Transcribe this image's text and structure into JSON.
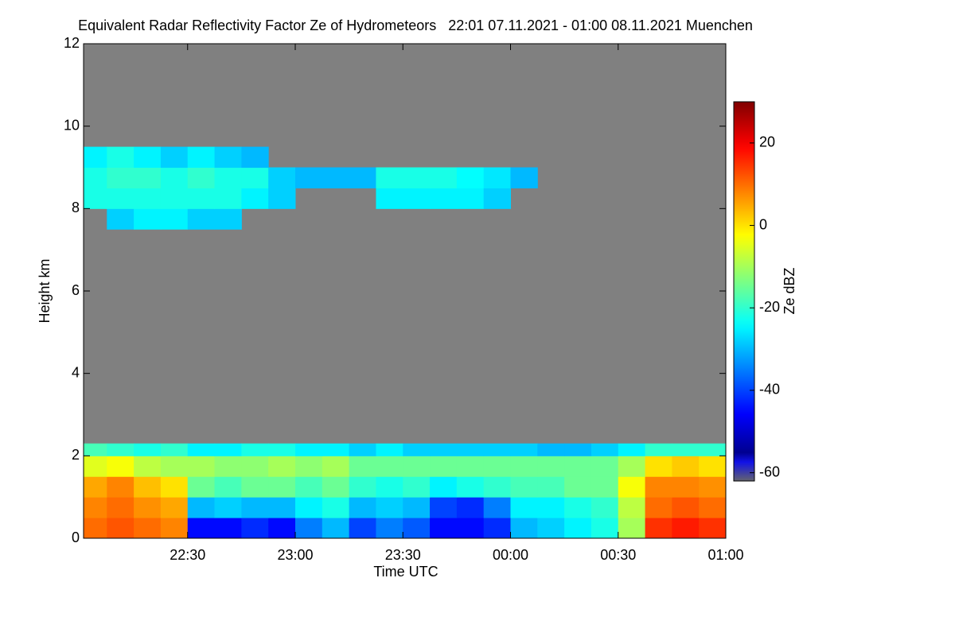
{
  "chart_data": {
    "type": "heatmap",
    "title": "Equivalent Radar Reflectivity Factor Ze of Hydrometeors   22:01 07.11.2021 - 01:00 08.11.2021 Muenchen",
    "x_label": "Time UTC",
    "y_label": "Height km",
    "colorbar_label": "Ze dBZ",
    "colormap": "jet",
    "no_data_color": "#808080",
    "xlim": [
      22.0167,
      25
    ],
    "xticks": [
      {
        "value": 22.5,
        "label": "22:30"
      },
      {
        "value": 23,
        "label": "23:00"
      },
      {
        "value": 23.5,
        "label": "23:30"
      },
      {
        "value": 24,
        "label": "00:00"
      },
      {
        "value": 24.5,
        "label": "00:30"
      },
      {
        "value": 25,
        "label": "01:00"
      }
    ],
    "ylim": [
      0,
      12
    ],
    "yticks": [
      0,
      2,
      4,
      6,
      8,
      10,
      12
    ],
    "zlim": [
      -62,
      30
    ],
    "zticks": [
      -60,
      -40,
      -20,
      0,
      20
    ],
    "x_bins": [
      22.0167,
      22.125,
      22.25,
      22.375,
      22.5,
      22.625,
      22.75,
      22.875,
      23,
      23.125,
      23.25,
      23.375,
      23.5,
      23.625,
      23.75,
      23.875,
      24,
      24.125,
      24.25,
      24.375,
      24.5,
      24.625,
      24.75,
      24.875,
      25
    ],
    "y_bins": [
      [
        0,
        0.5
      ],
      [
        0.5,
        1
      ],
      [
        1,
        1.5
      ],
      [
        1.5,
        2
      ],
      [
        2,
        2.3
      ],
      [
        7.5,
        8
      ],
      [
        8,
        8.5
      ],
      [
        8.5,
        9
      ],
      [
        9,
        9.5
      ]
    ],
    "z": [
      [
        10,
        12,
        10,
        8,
        -45,
        -45,
        -42,
        -45,
        -35,
        -30,
        -40,
        -35,
        -38,
        -45,
        -45,
        -42,
        -30,
        -28,
        -25,
        -22,
        -10,
        15,
        17,
        15
      ],
      [
        8,
        10,
        7,
        5,
        -30,
        -28,
        -30,
        -30,
        -25,
        -22,
        -30,
        -28,
        -30,
        -40,
        -42,
        -35,
        -25,
        -25,
        -22,
        -20,
        -8,
        10,
        12,
        10
      ],
      [
        5,
        8,
        3,
        0,
        -15,
        -18,
        -15,
        -15,
        -18,
        -15,
        -20,
        -22,
        -20,
        -25,
        -22,
        -20,
        -18,
        -18,
        -15,
        -15,
        -3,
        8,
        8,
        7
      ],
      [
        -5,
        -3,
        -8,
        -10,
        -10,
        -12,
        -12,
        -10,
        -12,
        -10,
        -15,
        -15,
        -15,
        -15,
        -15,
        -15,
        -15,
        -15,
        -15,
        -15,
        -10,
        0,
        2,
        0
      ],
      [
        -18,
        -20,
        -22,
        -20,
        -25,
        -25,
        -22,
        -22,
        -25,
        -25,
        -28,
        -25,
        -28,
        -28,
        -28,
        -28,
        -28,
        -30,
        -30,
        -28,
        -25,
        -20,
        -20,
        -20
      ],
      [
        null,
        -28,
        -25,
        -25,
        -28,
        -28,
        null,
        null,
        null,
        null,
        null,
        null,
        null,
        null,
        null,
        null,
        null,
        null,
        null,
        null,
        null,
        null,
        null,
        null
      ],
      [
        -22,
        -22,
        -22,
        -22,
        -22,
        -22,
        -25,
        -28,
        null,
        null,
        null,
        -25,
        -25,
        -25,
        -25,
        -28,
        null,
        null,
        null,
        null,
        null,
        null,
        null,
        null
      ],
      [
        -22,
        -20,
        -20,
        -22,
        -20,
        -22,
        -22,
        -28,
        -30,
        -30,
        -30,
        -22,
        -22,
        -22,
        -24,
        -26,
        -30,
        null,
        null,
        null,
        null,
        null,
        null,
        null
      ],
      [
        -25,
        -22,
        -25,
        -28,
        -25,
        -28,
        -30,
        null,
        null,
        null,
        null,
        null,
        null,
        null,
        null,
        null,
        null,
        null,
        null,
        null,
        null,
        null,
        null,
        null
      ]
    ]
  }
}
